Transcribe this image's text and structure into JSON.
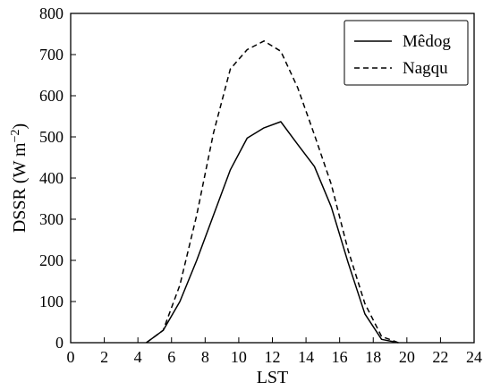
{
  "chart_data": {
    "type": "line",
    "title": "",
    "xlabel": "LST",
    "ylabel_main": "DSSR (W m",
    "ylabel_exp": "−2",
    "ylabel_close": ")",
    "xlim": [
      0,
      24
    ],
    "ylim": [
      0,
      800
    ],
    "xticks": [
      0,
      2,
      4,
      6,
      8,
      10,
      12,
      14,
      16,
      18,
      20,
      22,
      24
    ],
    "yticks": [
      0,
      100,
      200,
      300,
      400,
      500,
      600,
      700,
      800
    ],
    "grid": false,
    "legend_position": "top-right",
    "series": [
      {
        "name": "Mêdog",
        "style": "solid",
        "color": "#000000",
        "x": [
          4.5,
          5.5,
          6.5,
          7.5,
          8.5,
          9.5,
          10.5,
          11.5,
          12.5,
          13.5,
          14.5,
          15.5,
          16.5,
          17.5,
          18.5,
          19.5
        ],
        "y": [
          0,
          30,
          100,
          200,
          310,
          420,
          497,
          522,
          537,
          482,
          428,
          330,
          195,
          70,
          8,
          0
        ]
      },
      {
        "name": "Nagqu",
        "style": "dashed",
        "color": "#000000",
        "x": [
          4.5,
          5.5,
          6.5,
          7.5,
          8.5,
          9.5,
          10.5,
          11.5,
          12.5,
          13.5,
          14.5,
          15.5,
          16.5,
          17.5,
          18.5,
          19.5
        ],
        "y": [
          0,
          30,
          140,
          310,
          510,
          665,
          712,
          733,
          708,
          620,
          505,
          385,
          225,
          95,
          15,
          0
        ]
      }
    ]
  }
}
